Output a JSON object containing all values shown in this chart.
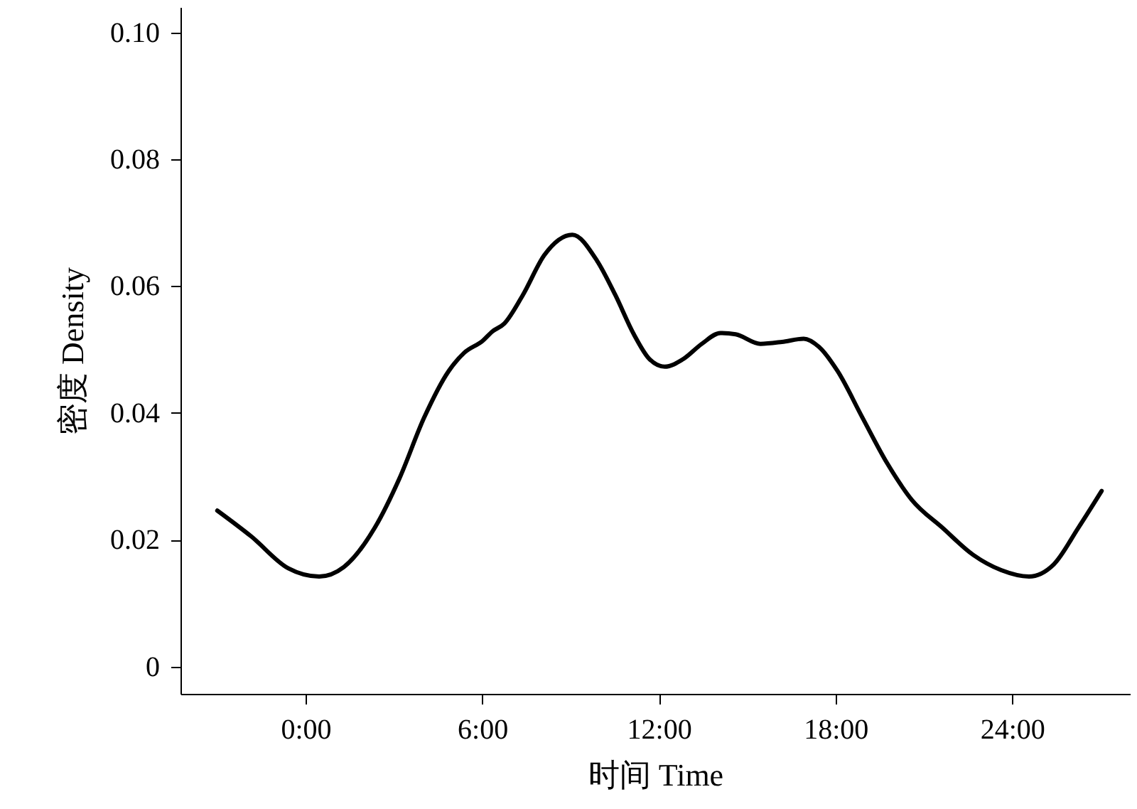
{
  "chart_data": {
    "type": "line",
    "xlabel": "时间 Time",
    "ylabel": "密度 Density",
    "x": [
      -3.0,
      -1.84,
      -0.59,
      0.46,
      1.3,
      2.35,
      3.19,
      4.03,
      4.86,
      5.39,
      6.02,
      6.33,
      6.75,
      7.38,
      8.11,
      9.06,
      9.9,
      10.52,
      11.15,
      11.68,
      12.2,
      12.83,
      13.46,
      14.09,
      14.61,
      15.45,
      16.18,
      16.92,
      17.44,
      18.07,
      18.91,
      19.75,
      20.59,
      21.63,
      22.68,
      23.63,
      24.57,
      25.41,
      26.25,
      27.04
    ],
    "series": [
      {
        "color": "#000000",
        "values": [
          0.0246,
          0.0205,
          0.0155,
          0.0142,
          0.0157,
          0.0219,
          0.0297,
          0.0393,
          0.0466,
          0.0495,
          0.0514,
          0.0528,
          0.0541,
          0.0586,
          0.0649,
          0.0681,
          0.064,
          0.0586,
          0.0524,
          0.0485,
          0.0473,
          0.0485,
          0.0509,
          0.0526,
          0.0524,
          0.0509,
          0.0512,
          0.0517,
          0.0504,
          0.0466,
          0.0393,
          0.0321,
          0.0263,
          0.0219,
          0.0176,
          0.0152,
          0.0142,
          0.0161,
          0.0219,
          0.0277
        ]
      }
    ],
    "xlim": [
      -4.25,
      28
    ],
    "ylim": [
      -0.0043,
      0.104
    ],
    "xticks": [
      {
        "value": 0,
        "label": "0:00"
      },
      {
        "value": 6,
        "label": "6:00"
      },
      {
        "value": 12,
        "label": "12:00"
      },
      {
        "value": 18,
        "label": "18:00"
      },
      {
        "value": 24,
        "label": "24:00"
      }
    ],
    "yticks": [
      {
        "value": 0,
        "label": "0"
      },
      0.02,
      0.04,
      0.06,
      0.08,
      {
        "value": 0.1,
        "label": "0.10"
      }
    ],
    "grid": false,
    "marker": "none",
    "line_style": "solid"
  }
}
